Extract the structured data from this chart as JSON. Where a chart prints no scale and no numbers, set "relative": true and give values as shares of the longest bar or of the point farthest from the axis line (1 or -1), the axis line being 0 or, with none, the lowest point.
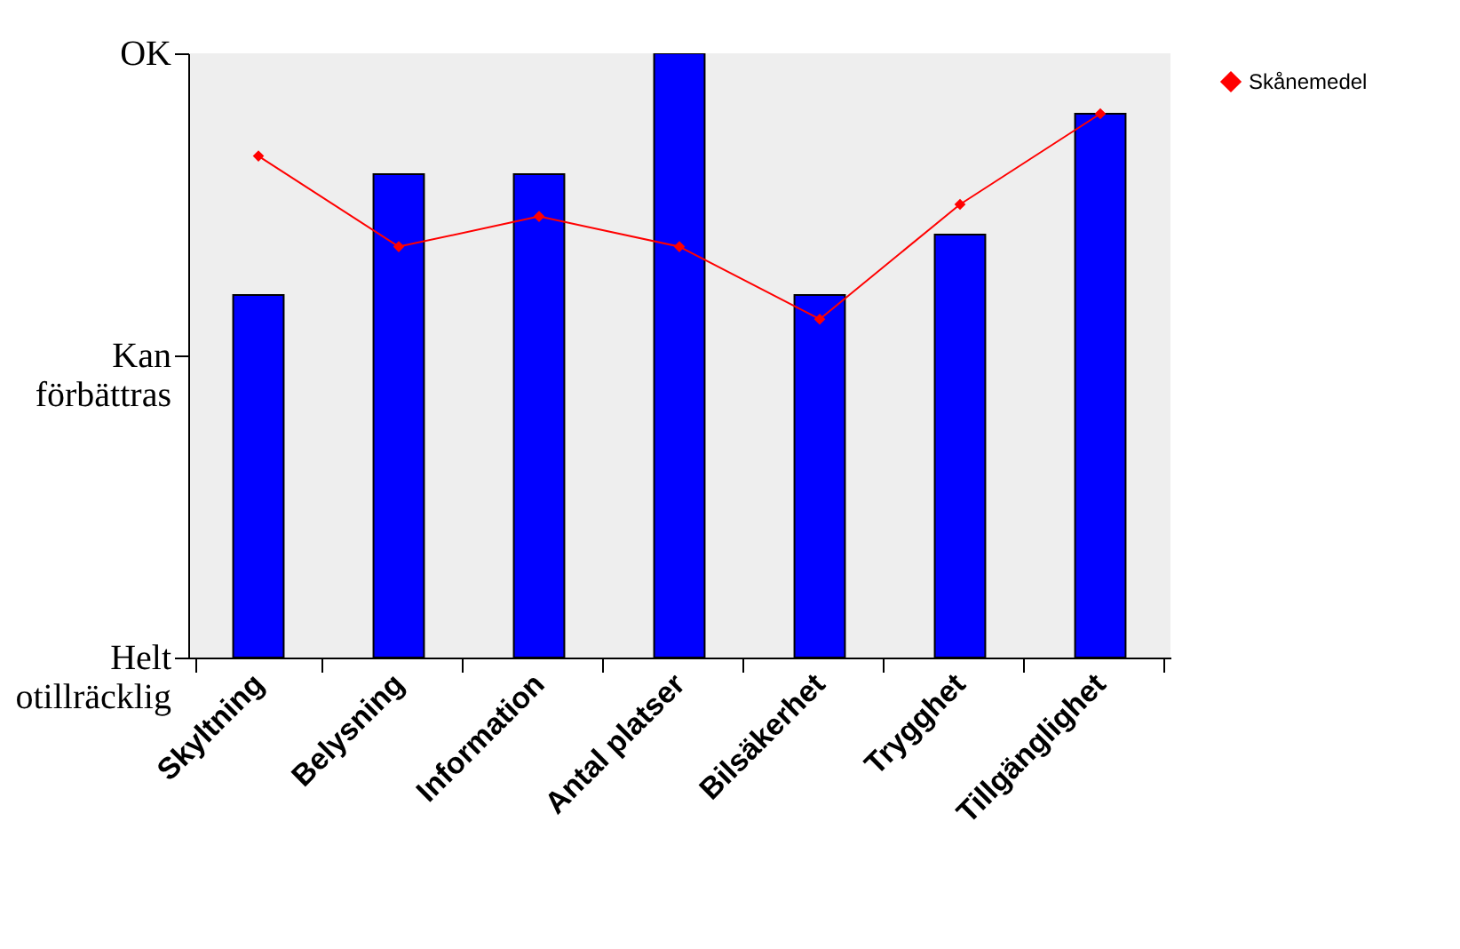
{
  "chart_data": {
    "type": "bar",
    "categories": [
      "Skyltning",
      "Belysning",
      "Information",
      "Antal platser",
      "Bilsäkerhet",
      "Trygghet",
      "Tillgänglighet"
    ],
    "series": [
      {
        "color": "#0000ff",
        "values": [
          0.6,
          0.8,
          0.8,
          1.0,
          0.6,
          0.7,
          0.9
        ]
      },
      {
        "type": "line",
        "name": "Skånemedel",
        "color": "#ff0000",
        "values": [
          0.83,
          0.68,
          0.73,
          0.68,
          0.56,
          0.75,
          0.9
        ]
      }
    ],
    "relative": true,
    "annotations": [
      "Helt otillräcklig",
      "Kan förbättras",
      "OK"
    ],
    "grid": false,
    "legend": "right",
    "marker": "diamond",
    "line_style": "solid"
  }
}
